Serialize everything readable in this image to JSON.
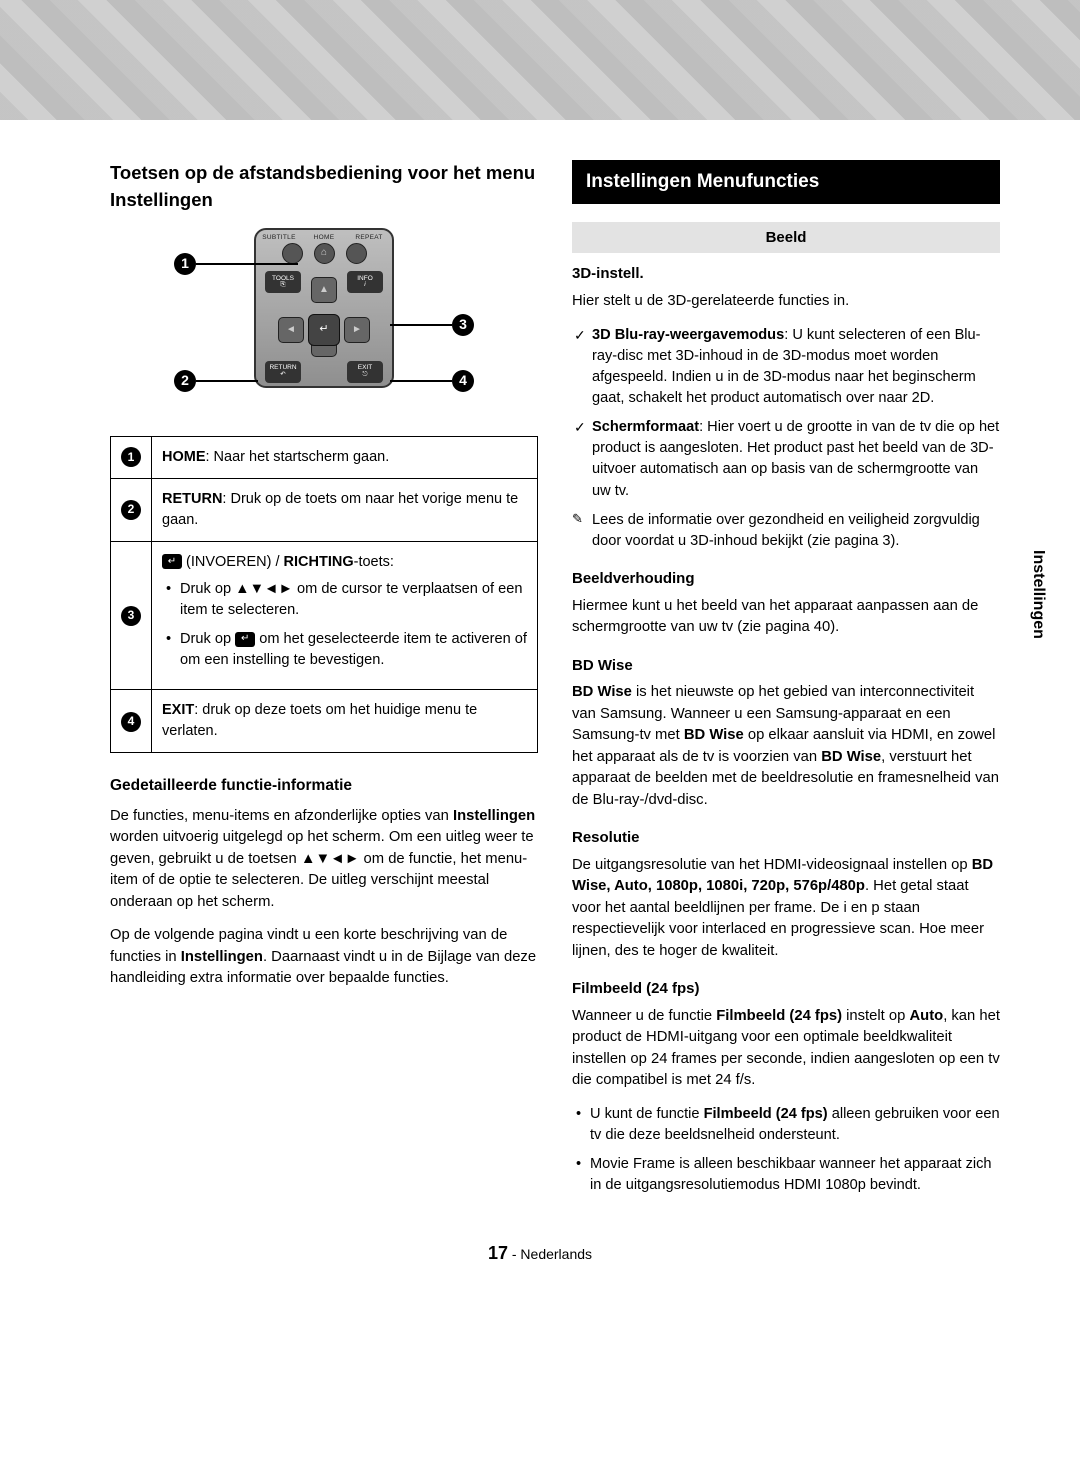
{
  "tab": "Instellingen",
  "left": {
    "title": "Toetsen op de afstandsbediening voor het menu Instellingen",
    "remote": {
      "top_labels": [
        "SUBTITLE",
        "HOME",
        "REPEAT"
      ],
      "tools": "TOOLS",
      "info": "INFO",
      "return": "RETURN",
      "exit": "EXIT"
    },
    "table": {
      "r1_num": "1",
      "r1": "HOME: Naar het startscherm gaan.",
      "r1_b": "HOME",
      "r2_num": "2",
      "r2": "RETURN: Druk op de toets om naar het vorige menu te gaan.",
      "r2_b": "RETURN",
      "r3_num": "3",
      "r3_lead": " (INVOEREN) / RICHTING-toets:",
      "r3_b": "RICHTING",
      "r3_li1": "Druk op ▲▼◄► om de cursor te verplaatsen of een item te selecteren.",
      "r3_li2_a": "Druk op ",
      "r3_li2_b": " om het geselecteerde item te activeren of om een instelling te bevestigen.",
      "r4_num": "4",
      "r4": "EXIT: druk op deze toets om het huidige menu te verlaten.",
      "r4_b": "EXIT"
    },
    "detail_hdr": "Gedetailleerde functie-informatie",
    "detail_p1a": "De functies, menu-items en afzonderlijke opties van ",
    "detail_p1b": "Instellingen",
    "detail_p1c": " worden uitvoerig uitgelegd op het scherm. Om een uitleg weer te geven, gebruikt u de toetsen ▲▼◄► om de functie, het menu-item of de optie te selecteren. De uitleg verschijnt meestal onderaan op het scherm.",
    "detail_p2a": "Op de volgende pagina vindt u een korte beschrijving van de functies in ",
    "detail_p2b": "Instellingen",
    "detail_p2c": ". Daarnaast vindt u in de Bijlage van deze handleiding extra informatie over bepaalde functies."
  },
  "right": {
    "bar": "Instellingen Menufuncties",
    "cat_hdr": "Beeld",
    "s1": "3D-instell.",
    "s1_p": "Hier stelt u de 3D-gerelateerde functies in.",
    "s1_li1_b": "3D Blu-ray-weergavemodus",
    "s1_li1": ": U kunt selecteren of een Blu-ray-disc met 3D-inhoud in de 3D-modus moet worden afgespeeld. Indien u in de 3D-modus naar het beginscherm gaat, schakelt het product automatisch over naar 2D.",
    "s1_li2_b": "Schermformaat",
    "s1_li2": ": Hier voert u de grootte in van de tv die op het product is aangesloten. Het product past het beeld van de 3D-uitvoer automatisch aan op basis van de schermgrootte van uw tv.",
    "s1_note": "Lees de informatie over gezondheid en veiligheid zorgvuldig door voordat u 3D-inhoud bekijkt (zie pagina 3).",
    "s2": "Beeldverhouding",
    "s2_p": "Hiermee kunt u het beeld van het apparaat aanpassen aan de schermgrootte van uw tv (zie pagina 40).",
    "s3": "BD Wise",
    "s3_p_a": "BD Wise",
    "s3_p_b": " is het nieuwste op het gebied van interconnectiviteit van Samsung. Wanneer u een Samsung-apparaat en een Samsung-tv met ",
    "s3_p_c": "BD Wise",
    "s3_p_d": " op elkaar aansluit via HDMI, en zowel het apparaat als de tv is voorzien van ",
    "s3_p_e": "BD Wise",
    "s3_p_f": ", verstuurt het apparaat de beelden met de beeldresolutie en framesnelheid van de Blu-ray-/dvd-disc.",
    "s4": "Resolutie",
    "s4_p_a": "De uitgangsresolutie van het HDMI-videosignaal instellen op ",
    "s4_p_b": "BD Wise, Auto, 1080p, 1080i, 720p, 576p/480p",
    "s4_p_c": ". Het getal staat voor het aantal beeldlijnen per frame. De i en p staan respectievelijk voor interlaced en progressieve scan. Hoe meer lijnen, des te hoger de kwaliteit.",
    "s5": "Filmbeeld (24 fps)",
    "s5_p_a": "Wanneer u de functie ",
    "s5_p_b": "Filmbeeld (24 fps)",
    "s5_p_c": " instelt op ",
    "s5_p_d": "Auto",
    "s5_p_e": ", kan het product de HDMI-uitgang voor een optimale beeldkwaliteit instellen op 24 frames per seconde, indien aangesloten op een tv die compatibel is met 24 f/s.",
    "s5_li1_a": "U kunt de functie ",
    "s5_li1_b": "Filmbeeld (24 fps)",
    "s5_li1_c": " alleen gebruiken voor een tv die deze beeldsnelheid ondersteunt.",
    "s5_li2": "Movie Frame is alleen beschikbaar wanneer het apparaat zich in de uitgangsresolutiemodus HDMI 1080p bevindt."
  },
  "footer": {
    "num": "17",
    "lang": " - Nederlands"
  }
}
